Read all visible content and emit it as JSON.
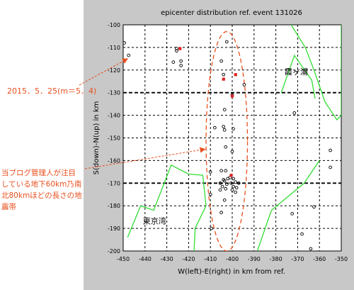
{
  "chart_data": {
    "type": "scatter",
    "title": "epicenter distribution ref. event 131026",
    "xlabel": "W(left)-E(right) in km from ref.",
    "ylabel": "S(down)-N(up) in km",
    "xlim": [
      -450,
      -350
    ],
    "ylim": [
      -200,
      -100
    ],
    "xticks": [
      -450,
      -440,
      -430,
      -420,
      -410,
      -400,
      -390,
      -380,
      -370,
      -360,
      -350
    ],
    "yticks": [
      -100,
      -110,
      -120,
      -130,
      -140,
      -150,
      -160,
      -170,
      -180,
      -190,
      -200
    ],
    "xtick_labels": [
      "-450",
      "-440",
      "-430",
      "-420",
      "-410",
      "-400",
      "-390",
      "-380",
      "-370",
      "-360",
      "-350"
    ],
    "ytick_labels": [
      "-100",
      "-110",
      "-120",
      "-130",
      "-140",
      "-150",
      "-160",
      "-170",
      "-180",
      "-190",
      "-200"
    ],
    "grid": true,
    "series": [
      {
        "kind": "epicenter-open",
        "color": "#000000",
        "points": [
          [
            -449.5,
            -108
          ],
          [
            -447.5,
            -113.5
          ],
          [
            -427,
            -116.5
          ],
          [
            -425.5,
            -110.5
          ],
          [
            -425.5,
            -111.5
          ],
          [
            -423.5,
            -116
          ],
          [
            -423.5,
            -118
          ],
          [
            -402.5,
            -107.5
          ],
          [
            -405,
            -116
          ],
          [
            -404,
            -122
          ],
          [
            -394.5,
            -126.5
          ],
          [
            -400,
            -131
          ],
          [
            -403.5,
            -137.5
          ],
          [
            -408,
            -145.5
          ],
          [
            -404,
            -145
          ],
          [
            -403.5,
            -146.5
          ],
          [
            -399.5,
            -146
          ],
          [
            -403,
            -154
          ],
          [
            -400,
            -156
          ],
          [
            -371.5,
            -139
          ],
          [
            -355,
            -155.5
          ],
          [
            -355,
            -163
          ],
          [
            -410,
            -165
          ],
          [
            -405,
            -164.5
          ],
          [
            -403,
            -164.5
          ],
          [
            -404,
            -168.5
          ],
          [
            -401,
            -167.5
          ],
          [
            -399.5,
            -168
          ],
          [
            -405.5,
            -170
          ],
          [
            -403.5,
            -169
          ],
          [
            -402,
            -168
          ],
          [
            -400.5,
            -170
          ],
          [
            -398.5,
            -169.5
          ],
          [
            -397,
            -170
          ],
          [
            -404.5,
            -171.5
          ],
          [
            -402.5,
            -170.5
          ],
          [
            -399.5,
            -171.5
          ],
          [
            -398,
            -172
          ],
          [
            -405.5,
            -173
          ],
          [
            -403,
            -172.5
          ],
          [
            -400,
            -173
          ],
          [
            -398.5,
            -174
          ],
          [
            -410,
            -175
          ],
          [
            -405,
            -183
          ],
          [
            -403.5,
            -177.5
          ],
          [
            -409.5,
            -190
          ],
          [
            -368,
            -192.5
          ],
          [
            -372.5,
            -183.5
          ],
          [
            -362.5,
            -180.5
          ],
          [
            -364,
            -199
          ]
        ]
      },
      {
        "kind": "epicenter-red",
        "color": "#e02020",
        "points": [
          [
            -424,
            -110.5
          ],
          [
            -404,
            -124
          ],
          [
            -398.5,
            -122
          ],
          [
            -400,
            -131.5
          ],
          [
            -400.5,
            -166.5
          ]
        ]
      }
    ],
    "coastlines": [
      {
        "color": "#33dd33",
        "points": [
          [
            -373,
            -100
          ],
          [
            -366.5,
            -110
          ],
          [
            -362.5,
            -120
          ],
          [
            -357.5,
            -134
          ],
          [
            -352,
            -142
          ],
          [
            -350,
            -140
          ],
          [
            -350,
            -100
          ]
        ]
      },
      {
        "color": "#33dd33",
        "points": [
          [
            -377.5,
            -130
          ],
          [
            -371.5,
            -113.5
          ],
          [
            -363.5,
            -124.5
          ],
          [
            -362,
            -132.5
          ]
        ]
      },
      {
        "color": "#33dd33",
        "points": [
          [
            -448,
            -194
          ],
          [
            -442,
            -180
          ],
          [
            -436,
            -182
          ],
          [
            -428,
            -162
          ],
          [
            -420,
            -166
          ],
          [
            -413.5,
            -166.5
          ],
          [
            -412,
            -180
          ],
          [
            -417,
            -190
          ],
          [
            -417.5,
            -200
          ]
        ]
      },
      {
        "color": "#33dd33",
        "points": [
          [
            -388.5,
            -200
          ],
          [
            -382,
            -182
          ],
          [
            -367,
            -170
          ],
          [
            -360,
            -160
          ]
        ]
      }
    ],
    "region_labels": [
      {
        "text": "霞ヶ浦",
        "x": -376,
        "y": -122
      },
      {
        "text": "東京湾",
        "x": -441,
        "y": -188
      }
    ],
    "highlight_region": {
      "kind": "dashed-ellipse",
      "color": "#e8501e",
      "center": [
        -402.5,
        -151.5
      ],
      "radius_x": 9.5,
      "radius_y": 48.5
    }
  },
  "annotations": {
    "event_label": "2015．5．25(m＝5．4)",
    "note_lines": [
      "当ブログ管理人が注目",
      "している地下60km乃南",
      "北80kmほどの長さの地",
      "震帯"
    ],
    "color": "#e8501e"
  }
}
